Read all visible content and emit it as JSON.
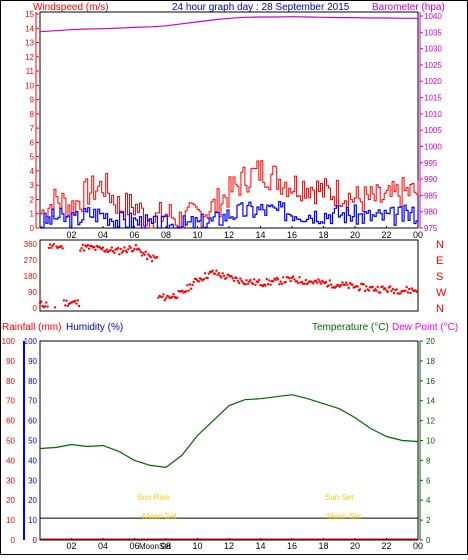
{
  "header": {
    "left_label": "Windspeed (m/s)",
    "center_title": "24 hour graph day : 28 September 2015",
    "right_label": "Barometer (hpa)"
  },
  "colors": {
    "wind": "#ff0000",
    "gust_low": "#0000ff",
    "baro": "#cc00cc",
    "direction": "#ff0000",
    "rain": "#ff0000",
    "humidity": "#0000ff",
    "temp": "#006600",
    "dew": "#ff00ff",
    "sun_moon": "#ffcc00",
    "axis": "#000000"
  },
  "x_axis": {
    "tick_labels": [
      "02",
      "04",
      "06",
      "08",
      "10",
      "12",
      "14",
      "16",
      "18",
      "20",
      "22",
      "00"
    ],
    "moon_label": "MoonSet"
  },
  "chart_data": [
    {
      "type": "line",
      "title": "",
      "ylabel": "Windspeed (m/s)",
      "y2label": "Barometer (hpa)",
      "ylim": [
        0,
        15
      ],
      "y2lim": [
        975,
        1040
      ],
      "y_ticks": [
        "0",
        "1",
        "2",
        "3",
        "4",
        "5",
        "6",
        "7",
        "8",
        "9",
        "10",
        "11",
        "12",
        "13",
        "14",
        "15"
      ],
      "y2_ticks": [
        "975",
        "980",
        "985",
        "990",
        "995",
        "1000",
        "1005",
        "1010",
        "1015",
        "1020",
        "1025",
        "1030",
        "1035",
        "1040"
      ],
      "x_hours": [
        0,
        1,
        2,
        3,
        4,
        5,
        6,
        7,
        8,
        9,
        10,
        11,
        12,
        13,
        14,
        15,
        16,
        17,
        18,
        19,
        20,
        21,
        22,
        23,
        24
      ],
      "series": [
        {
          "name": "Windspeed",
          "values": [
            1,
            2,
            1.5,
            2.5,
            3,
            1.5,
            1.5,
            0.5,
            1,
            0.5,
            1,
            1.5,
            2.5,
            3.5,
            4,
            3.5,
            3,
            3,
            2.5,
            2.5,
            2,
            2,
            2,
            2.5,
            2.5
          ]
        },
        {
          "name": "Gust min",
          "values": [
            0.3,
            0.8,
            0.5,
            1,
            1,
            0.5,
            0.5,
            0.2,
            0.2,
            0.2,
            0.3,
            0.5,
            1,
            1.2,
            1.3,
            1.2,
            1.1,
            1,
            1,
            1,
            0.9,
            0.8,
            0.8,
            0.9,
            1
          ]
        },
        {
          "name": "Barometer",
          "values": [
            1035.2,
            1035.5,
            1035.8,
            1036.0,
            1036.1,
            1036.3,
            1036.5,
            1036.7,
            1037.0,
            1037.6,
            1038.2,
            1038.8,
            1039.3,
            1039.6,
            1039.7,
            1039.7,
            1039.8,
            1039.7,
            1039.6,
            1039.5,
            1039.5,
            1039.4,
            1039.4,
            1039.3,
            1039.3
          ]
        }
      ]
    },
    {
      "type": "scatter",
      "title": "",
      "ylabel": "",
      "ylim": [
        0,
        360
      ],
      "y_ticks": [
        "0",
        "90",
        "180",
        "270",
        "360"
      ],
      "compass_labels": [
        "N",
        "W",
        "S",
        "E",
        "N"
      ],
      "x_hours": [
        0,
        1,
        2,
        3,
        4,
        5,
        6,
        7,
        8,
        9,
        10,
        11,
        12,
        13,
        14,
        15,
        16,
        17,
        18,
        19,
        20,
        21,
        22,
        23,
        24
      ],
      "series": [
        {
          "name": "Direction",
          "values": [
            20,
            345,
            30,
            340,
            330,
            320,
            340,
            280,
            60,
            80,
            160,
            200,
            170,
            150,
            140,
            150,
            160,
            150,
            140,
            130,
            120,
            110,
            105,
            100,
            100
          ]
        }
      ]
    },
    {
      "type": "line",
      "title": "",
      "ylabel": "Rainfall (mm)",
      "ylabel2": "Humidity (%)",
      "y2label": "Temperature (°C)",
      "y2label2": "Dew Point (°C)",
      "ylim": [
        0,
        100
      ],
      "y2lim": [
        0,
        20
      ],
      "y_ticks": [
        "0",
        "10",
        "20",
        "30",
        "40",
        "50",
        "60",
        "70",
        "80",
        "90",
        "100"
      ],
      "y2_ticks": [
        "0",
        "2",
        "4",
        "6",
        "8",
        "10",
        "12",
        "14",
        "16",
        "18",
        "20"
      ],
      "x_hours": [
        0,
        1,
        2,
        3,
        4,
        5,
        6,
        7,
        8,
        9,
        10,
        11,
        12,
        13,
        14,
        15,
        16,
        17,
        18,
        19,
        20,
        21,
        22,
        23,
        24
      ],
      "series": [
        {
          "name": "Temperature",
          "values": [
            9.2,
            9.3,
            9.6,
            9.4,
            9.5,
            8.9,
            8.0,
            7.5,
            7.3,
            8.5,
            10.5,
            12.0,
            13.5,
            14.1,
            14.2,
            14.4,
            14.6,
            14.2,
            13.7,
            13.2,
            12.3,
            11.2,
            10.4,
            10.0,
            9.9
          ]
        },
        {
          "name": "Rainfall",
          "values": [
            0,
            0,
            0,
            0,
            0,
            0,
            0,
            0,
            0,
            0,
            0,
            0,
            0,
            0,
            0,
            0,
            0,
            0,
            0,
            0,
            0,
            0,
            0,
            0,
            0
          ]
        }
      ],
      "humidity_line": 11,
      "annotations": [
        {
          "text": "Sun Rise",
          "hour": 7.2
        },
        {
          "text": "Sun Set",
          "hour": 19.0
        },
        {
          "text": "Moon Set",
          "hour": 7.6
        },
        {
          "text": "Moon Set",
          "hour": 19.3
        }
      ]
    }
  ]
}
